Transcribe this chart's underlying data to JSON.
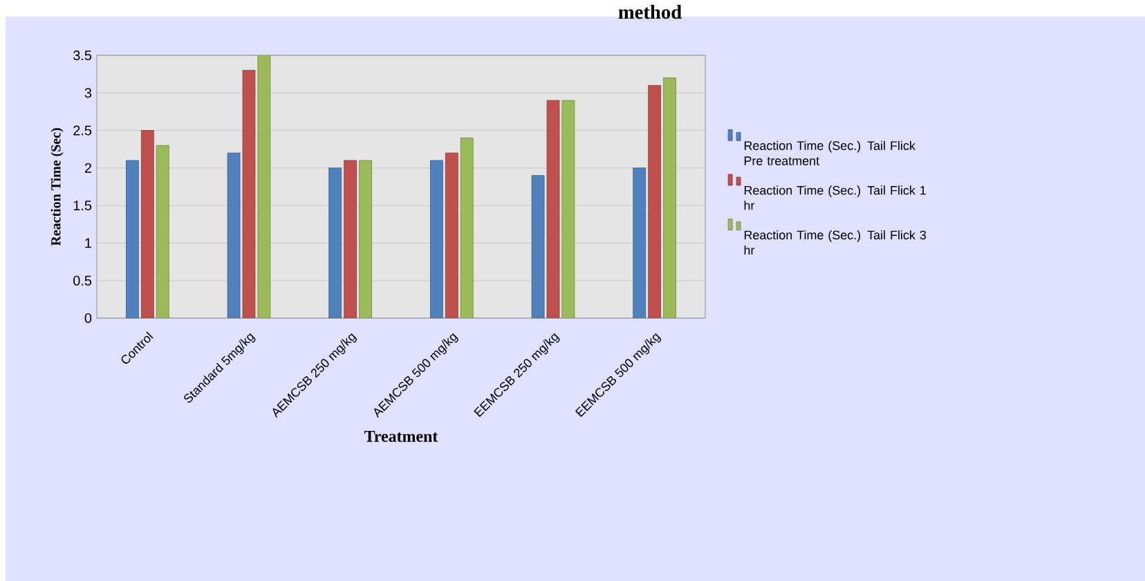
{
  "chart_data": {
    "type": "bar",
    "title": "method",
    "xlabel": "Treatment",
    "ylabel": "Reaction Time (Sec)",
    "categories": [
      "Control",
      "Standard 5mg/kg",
      "AEMCSB 250 mg/kg",
      "AEMCSB 500 mg/kg",
      "EEMCSB  250 mg/kg",
      "EEMCSB 500 mg/kg"
    ],
    "series": [
      {
        "name": "Reaction Time (Sec.) Tail Flick Pre treatment",
        "color": "#4f81bd",
        "values": [
          2.1,
          2.2,
          2.0,
          2.1,
          1.9,
          2.0
        ]
      },
      {
        "name": "Reaction Time (Sec.) Tail Flick 1 hr",
        "color": "#c0504d",
        "values": [
          2.5,
          3.3,
          2.1,
          2.2,
          2.9,
          3.1
        ]
      },
      {
        "name": "Reaction Time (Sec.) Tail Flick 3 hr",
        "color": "#9bbb59",
        "values": [
          2.3,
          3.5,
          2.1,
          2.4,
          2.9,
          3.2
        ]
      }
    ],
    "ylim": [
      0,
      3.5
    ],
    "yticks": [
      0,
      0.5,
      1,
      1.5,
      2,
      2.5,
      3,
      3.5
    ],
    "grid": "y",
    "legend": "right"
  }
}
